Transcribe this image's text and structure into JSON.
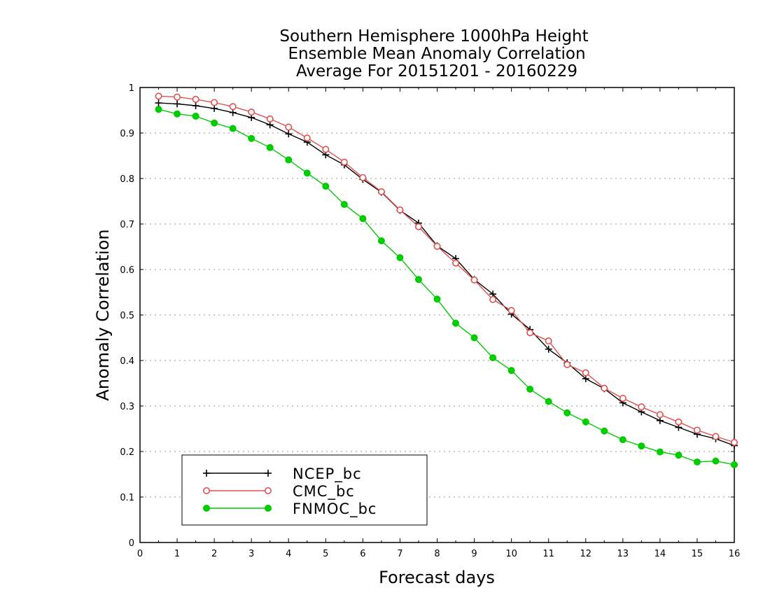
{
  "chart_data": {
    "type": "line",
    "title": [
      "Southern Hemisphere 1000hPa Height",
      "Ensemble Mean Anomaly Correlation",
      "Average For 20151201 - 20160229"
    ],
    "xlabel": "Forecast days",
    "ylabel": "Anomaly Correlation",
    "xlim": [
      0,
      16
    ],
    "ylim": [
      0,
      1
    ],
    "xticks": [
      "0",
      "1",
      "2",
      "3",
      "4",
      "5",
      "6",
      "7",
      "8",
      "9",
      "10",
      "11",
      "12",
      "13",
      "14",
      "15",
      "16"
    ],
    "yticks": [
      "0",
      "0.1",
      "0.2",
      "0.3",
      "0.4",
      "0.5",
      "0.6",
      "0.7",
      "0.8",
      "0.9",
      "1"
    ],
    "grid": "horizontal dotted",
    "legend_position": "bottom-left",
    "x": [
      0.5,
      1,
      1.5,
      2,
      2.5,
      3,
      3.5,
      4,
      4.5,
      5,
      5.5,
      6,
      6.5,
      7,
      7.5,
      8,
      8.5,
      9,
      9.5,
      10,
      10.5,
      11,
      11.5,
      12,
      12.5,
      13,
      13.5,
      14,
      14.5,
      15,
      15.5,
      16
    ],
    "series": [
      {
        "name": "NCEP_bc",
        "color": "#000000",
        "marker": "plus",
        "values": [
          0.966,
          0.964,
          0.96,
          0.954,
          0.945,
          0.934,
          0.918,
          0.898,
          0.88,
          0.852,
          0.83,
          0.798,
          0.77,
          0.73,
          0.702,
          0.652,
          0.624,
          0.578,
          0.546,
          0.502,
          0.468,
          0.425,
          0.395,
          0.36,
          0.338,
          0.307,
          0.287,
          0.268,
          0.253,
          0.238,
          0.228,
          0.213
        ]
      },
      {
        "name": "CMC_bc",
        "color": "#e05050",
        "marker": "open-circle",
        "values": [
          0.981,
          0.979,
          0.974,
          0.967,
          0.958,
          0.946,
          0.931,
          0.913,
          0.889,
          0.864,
          0.836,
          0.802,
          0.771,
          0.731,
          0.694,
          0.651,
          0.614,
          0.577,
          0.534,
          0.51,
          0.461,
          0.443,
          0.391,
          0.373,
          0.339,
          0.317,
          0.298,
          0.281,
          0.265,
          0.247,
          0.233,
          0.22
        ]
      },
      {
        "name": "FNMOC_bc",
        "color": "#00cc00",
        "marker": "filled-circle",
        "values": [
          0.952,
          0.942,
          0.937,
          0.922,
          0.91,
          0.888,
          0.868,
          0.841,
          0.812,
          0.783,
          0.743,
          0.712,
          0.663,
          0.626,
          0.578,
          0.535,
          0.482,
          0.45,
          0.406,
          0.378,
          0.337,
          0.31,
          0.285,
          0.265,
          0.245,
          0.226,
          0.212,
          0.199,
          0.192,
          0.177,
          0.179,
          0.171
        ]
      }
    ]
  }
}
